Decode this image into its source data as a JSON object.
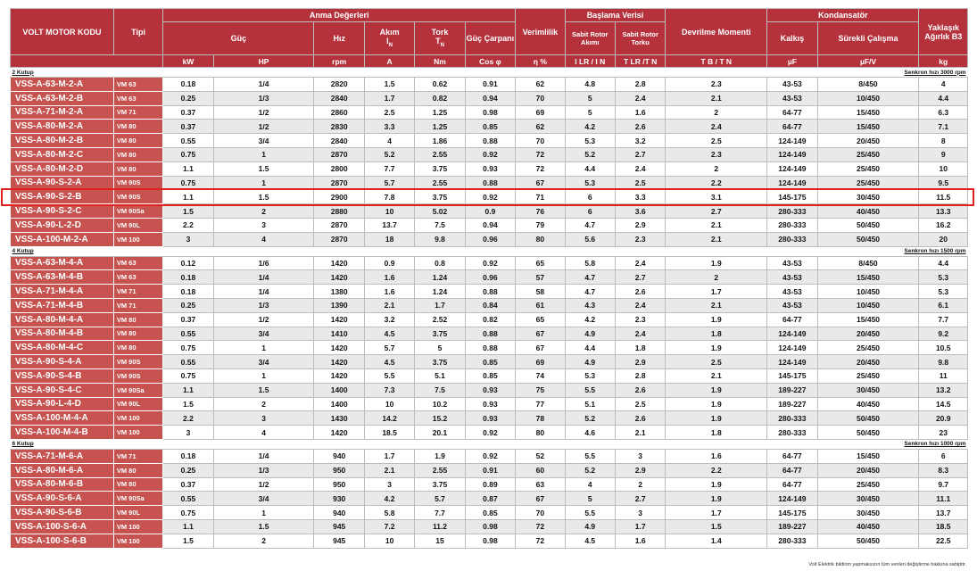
{
  "header": {
    "code": "VOLT MOTOR KODU",
    "type": "Tipi",
    "rated": "Anma Değerleri",
    "power": "Güç",
    "speed": "Hız",
    "current": "Akım",
    "current_sym": "I",
    "current_sub": "N",
    "torque": "Tork",
    "torque_sym": "T",
    "torque_sub": "N",
    "pf": "Güç Çarpanı",
    "eff": "Verimlilik",
    "start": "Başlama Verisi",
    "lr_current": "Sabit Rotor Akımı",
    "lr_torque": "Sabit Rotor Torku",
    "breakdown": "Devrilme Momenti",
    "capacitor": "Kondansatör",
    "start_cap": "Kalkış",
    "run_cap": "Sürekli Çalışma",
    "weight": "Yaklaşık Ağırlık B3",
    "units": [
      "kW",
      "HP",
      "rpm",
      "A",
      "Nm",
      "Cos φ",
      "η %",
      "I LR / I N",
      "T LR /T N",
      "T B / T N",
      "µF",
      "µF/V",
      "kg"
    ]
  },
  "sections": [
    {
      "label": "2 Kutup",
      "sync": "Senkron hızı 3000 rpm",
      "rows": [
        [
          "VSS-A-63-M-2-A",
          "VM 63",
          "0.18",
          "1/4",
          "2820",
          "1.5",
          "0.62",
          "0.91",
          "62",
          "4.8",
          "2.8",
          "2.3",
          "43-53",
          "8/450",
          "4"
        ],
        [
          "VSS-A-63-M-2-B",
          "VM 63",
          "0.25",
          "1/3",
          "2840",
          "1.7",
          "0.82",
          "0.94",
          "70",
          "5",
          "2.4",
          "2.1",
          "43-53",
          "10/450",
          "4.4"
        ],
        [
          "VSS-A-71-M-2-A",
          "VM 71",
          "0.37",
          "1/2",
          "2860",
          "2.5",
          "1.25",
          "0.98",
          "69",
          "5",
          "1.6",
          "2",
          "64-77",
          "15/450",
          "6.3"
        ],
        [
          "VSS-A-80-M-2-A",
          "VM 80",
          "0.37",
          "1/2",
          "2830",
          "3.3",
          "1.25",
          "0.85",
          "62",
          "4.2",
          "2.6",
          "2.4",
          "64-77",
          "15/450",
          "7.1"
        ],
        [
          "VSS-A-80-M-2-B",
          "VM 80",
          "0.55",
          "3/4",
          "2840",
          "4",
          "1.86",
          "0.88",
          "70",
          "5.3",
          "3.2",
          "2.5",
          "124-149",
          "20/450",
          "8"
        ],
        [
          "VSS-A-80-M-2-C",
          "VM 80",
          "0.75",
          "1",
          "2870",
          "5.2",
          "2.55",
          "0.92",
          "72",
          "5.2",
          "2.7",
          "2.3",
          "124-149",
          "25/450",
          "9"
        ],
        [
          "VSS-A-80-M-2-D",
          "VM 80",
          "1.1",
          "1.5",
          "2800",
          "7.7",
          "3.75",
          "0.93",
          "72",
          "4.4",
          "2.4",
          "2",
          "124-149",
          "25/450",
          "10"
        ],
        [
          "VSS-A-90-S-2-A",
          "VM 90S",
          "0.75",
          "1",
          "2870",
          "5.7",
          "2.55",
          "0.88",
          "67",
          "5.3",
          "2.5",
          "2.2",
          "124-149",
          "25/450",
          "9.5"
        ],
        [
          "VSS-A-90-S-2-B",
          "VM 90S",
          "1.1",
          "1.5",
          "2900",
          "7.8",
          "3.75",
          "0.92",
          "71",
          "6",
          "3.3",
          "3.1",
          "145-175",
          "30/450",
          "11.5"
        ],
        [
          "VSS-A-90-S-2-C",
          "VM 90Sa",
          "1.5",
          "2",
          "2880",
          "10",
          "5.02",
          "0.9",
          "76",
          "6",
          "3.6",
          "2.7",
          "280-333",
          "40/450",
          "13.3"
        ],
        [
          "VSS-A-90-L-2-D",
          "VM 90L",
          "2.2",
          "3",
          "2870",
          "13.7",
          "7.5",
          "0.94",
          "79",
          "4.7",
          "2.9",
          "2.1",
          "280-333",
          "50/450",
          "16.2"
        ],
        [
          "VSS-A-100-M-2-A",
          "VM 100",
          "3",
          "4",
          "2870",
          "18",
          "9.8",
          "0.96",
          "80",
          "5.6",
          "2.3",
          "2.1",
          "280-333",
          "50/450",
          "20"
        ]
      ]
    },
    {
      "label": "4 Kutup",
      "sync": "Senkron hızı 1500 rpm",
      "rows": [
        [
          "VSS-A-63-M-4-A",
          "VM 63",
          "0.12",
          "1/6",
          "1420",
          "0.9",
          "0.8",
          "0.92",
          "65",
          "5.8",
          "2.4",
          "1.9",
          "43-53",
          "8/450",
          "4.4"
        ],
        [
          "VSS-A-63-M-4-B",
          "VM 63",
          "0.18",
          "1/4",
          "1420",
          "1.6",
          "1.24",
          "0.96",
          "57",
          "4.7",
          "2.7",
          "2",
          "43-53",
          "15/450",
          "5.3"
        ],
        [
          "VSS-A-71-M-4-A",
          "VM 71",
          "0.18",
          "1/4",
          "1380",
          "1.6",
          "1.24",
          "0.88",
          "58",
          "4.7",
          "2.6",
          "1.7",
          "43-53",
          "10/450",
          "5.3"
        ],
        [
          "VSS-A-71-M-4-B",
          "VM 71",
          "0.25",
          "1/3",
          "1390",
          "2.1",
          "1.7",
          "0.84",
          "61",
          "4.3",
          "2.4",
          "2.1",
          "43-53",
          "10/450",
          "6.1"
        ],
        [
          "VSS-A-80-M-4-A",
          "VM 80",
          "0.37",
          "1/2",
          "1420",
          "3.2",
          "2.52",
          "0.82",
          "65",
          "4.2",
          "2.3",
          "1.9",
          "64-77",
          "15/450",
          "7.7"
        ],
        [
          "VSS-A-80-M-4-B",
          "VM 80",
          "0.55",
          "3/4",
          "1410",
          "4.5",
          "3.75",
          "0.88",
          "67",
          "4.9",
          "2.4",
          "1.8",
          "124-149",
          "20/450",
          "9.2"
        ],
        [
          "VSS-A-80-M-4-C",
          "VM 80",
          "0.75",
          "1",
          "1420",
          "5.7",
          "5",
          "0.88",
          "67",
          "4.4",
          "1.8",
          "1.9",
          "124-149",
          "25/450",
          "10.5"
        ],
        [
          "VSS-A-90-S-4-A",
          "VM 90S",
          "0.55",
          "3/4",
          "1420",
          "4.5",
          "3.75",
          "0.85",
          "69",
          "4.9",
          "2.9",
          "2.5",
          "124-149",
          "20/450",
          "9.8"
        ],
        [
          "VSS-A-90-S-4-B",
          "VM 90S",
          "0.75",
          "1",
          "1420",
          "5.5",
          "5.1",
          "0.85",
          "74",
          "5.3",
          "2.8",
          "2.1",
          "145-175",
          "25/450",
          "11"
        ],
        [
          "VSS-A-90-S-4-C",
          "VM 90Sa",
          "1.1",
          "1.5",
          "1400",
          "7.3",
          "7.5",
          "0.93",
          "75",
          "5.5",
          "2.6",
          "1.9",
          "189-227",
          "30/450",
          "13.2"
        ],
        [
          "VSS-A-90-L-4-D",
          "VM 90L",
          "1.5",
          "2",
          "1400",
          "10",
          "10.2",
          "0.93",
          "77",
          "5.1",
          "2.5",
          "1.9",
          "189-227",
          "40/450",
          "14.5"
        ],
        [
          "VSS-A-100-M-4-A",
          "VM 100",
          "2.2",
          "3",
          "1430",
          "14.2",
          "15.2",
          "0.93",
          "78",
          "5.2",
          "2.6",
          "1.9",
          "280-333",
          "50/450",
          "20.9"
        ],
        [
          "VSS-A-100-M-4-B",
          "VM 100",
          "3",
          "4",
          "1420",
          "18.5",
          "20.1",
          "0.92",
          "80",
          "4.6",
          "2.1",
          "1.8",
          "280-333",
          "50/450",
          "23"
        ]
      ]
    },
    {
      "label": "6 Kutup",
      "sync": "Senkron hızı 1000 rpm",
      "rows": [
        [
          "VSS-A-71-M-6-A",
          "VM 71",
          "0.18",
          "1/4",
          "940",
          "1.7",
          "1.9",
          "0.92",
          "52",
          "5.5",
          "3",
          "1.6",
          "64-77",
          "15/450",
          "6"
        ],
        [
          "VSS-A-80-M-6-A",
          "VM 80",
          "0.25",
          "1/3",
          "950",
          "2.1",
          "2.55",
          "0.91",
          "60",
          "5.2",
          "2.9",
          "2.2",
          "64-77",
          "20/450",
          "8.3"
        ],
        [
          "VSS-A-80-M-6-B",
          "VM 80",
          "0.37",
          "1/2",
          "950",
          "3",
          "3.75",
          "0.89",
          "63",
          "4",
          "2",
          "1.9",
          "64-77",
          "25/450",
          "9.7"
        ],
        [
          "VSS-A-90-S-6-A",
          "VM 90Sa",
          "0.55",
          "3/4",
          "930",
          "4.2",
          "5.7",
          "0.87",
          "67",
          "5",
          "2.7",
          "1.9",
          "124-149",
          "30/450",
          "11.1"
        ],
        [
          "VSS-A-90-S-6-B",
          "VM 90L",
          "0.75",
          "1",
          "940",
          "5.8",
          "7.7",
          "0.85",
          "70",
          "5.5",
          "3",
          "1.7",
          "145-175",
          "30/450",
          "13.7"
        ],
        [
          "VSS-A-100-S-6-A",
          "VM 100",
          "1.1",
          "1.5",
          "945",
          "7.2",
          "11.2",
          "0.98",
          "72",
          "4.9",
          "1.7",
          "1.5",
          "189-227",
          "40/450",
          "18.5"
        ],
        [
          "VSS-A-100-S-6-B",
          "VM 100",
          "1.5",
          "2",
          "945",
          "10",
          "15",
          "0.98",
          "72",
          "4.5",
          "1.6",
          "1.4",
          "280-333",
          "50/450",
          "22.5"
        ]
      ]
    }
  ],
  "highlighted_model": "VSS-A-90-S-2-B",
  "colors": {
    "header": "#b5323c",
    "code_cell": "#c6534f",
    "alt_row": "#e9e9e9",
    "highlight": "#e0201c"
  },
  "footnote": "Volt Elektrik bildirim yapmaksızın tüm verileri değiştirme hakkına sahiptir."
}
